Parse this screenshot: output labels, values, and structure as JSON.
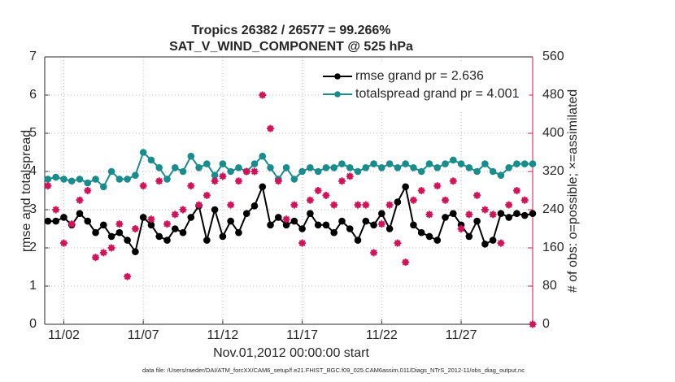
{
  "chart_data": {
    "type": "line",
    "title": "Tropics 26382 / 26577 = 99.266%",
    "subtitle": "SAT_V_WIND_COMPONENT @ 525 hPa",
    "x_label": "Nov.01,2012 00:00:00 start",
    "y_label": "rmse and totalspread",
    "y2_label": "# of obs: o=possible; ×=assimilated",
    "footnote": "data file: /Users/raeder/DAI/ATM_forcXX/CAM6_setup/f.e21.FHIST_BGC.f09_025.CAM6assim.011/Diags_NTrS_2012-11/obs_diag_output.nc",
    "x": [
      0,
      0.5,
      1,
      1.5,
      2,
      2.5,
      3,
      3.5,
      4,
      4.5,
      5,
      5.5,
      6,
      6.5,
      7,
      7.5,
      8,
      8.5,
      9,
      9.5,
      10,
      10.5,
      11,
      11.5,
      12,
      12.5,
      13,
      13.5,
      14,
      14.5,
      15,
      15.5,
      16,
      16.5,
      17,
      17.5,
      18,
      18.5,
      19,
      19.5,
      20,
      20.5,
      21,
      21.5,
      22,
      22.5,
      23,
      23.5,
      24,
      24.5,
      25,
      25.5,
      26,
      26.5,
      27,
      27.5,
      28,
      28.5,
      29,
      29.5,
      30,
      30.5
    ],
    "xlim": [
      -0.2,
      30.5
    ],
    "xticks": [
      {
        "value": 1,
        "label": "11/02"
      },
      {
        "value": 6,
        "label": "11/07"
      },
      {
        "value": 11,
        "label": "11/12"
      },
      {
        "value": 16,
        "label": "11/17"
      },
      {
        "value": 21,
        "label": "11/22"
      },
      {
        "value": 26,
        "label": "11/27"
      }
    ],
    "ylim": [
      0,
      7
    ],
    "yticks": [
      0,
      1,
      2,
      3,
      4,
      5,
      6,
      7
    ],
    "y2lim": [
      0,
      560
    ],
    "y2ticks": [
      0,
      80,
      160,
      240,
      320,
      400,
      480,
      560
    ],
    "grid": true,
    "legend": "upper right",
    "legend_text_color": "#1f5fe0",
    "y2_color": "#d0145a",
    "series": [
      {
        "name": "rmse grand pr = 2.636",
        "color": "#000000",
        "marker": "o",
        "values": [
          2.7,
          2.7,
          2.8,
          2.6,
          2.9,
          2.7,
          2.4,
          2.6,
          2.3,
          2.4,
          2.2,
          1.9,
          2.8,
          2.6,
          2.3,
          2.2,
          2.5,
          2.4,
          2.8,
          3.1,
          2.2,
          3.0,
          2.3,
          2.7,
          2.4,
          2.9,
          3.1,
          3.6,
          2.6,
          2.8,
          2.6,
          2.7,
          2.5,
          2.9,
          2.6,
          2.6,
          2.4,
          2.7,
          2.5,
          2.2,
          2.7,
          2.6,
          2.9,
          2.5,
          3.2,
          3.6,
          2.6,
          2.4,
          2.3,
          2.2,
          2.8,
          2.9,
          2.6,
          2.3,
          2.7,
          2.1,
          2.2,
          2.9,
          2.8,
          2.9,
          2.85,
          2.9
        ]
      },
      {
        "name": "totalspread grand pr = 4.001",
        "color": "#1a8c8c",
        "marker": "o",
        "values": [
          3.8,
          3.85,
          3.8,
          3.75,
          3.8,
          3.7,
          3.8,
          3.6,
          4.0,
          3.8,
          3.8,
          3.9,
          4.5,
          4.3,
          4.1,
          3.8,
          4.1,
          4.0,
          4.4,
          4.1,
          4.2,
          3.9,
          4.2,
          4.0,
          4.1,
          4.0,
          4.2,
          4.4,
          4.1,
          3.8,
          4.1,
          3.8,
          4.0,
          4.1,
          4.0,
          4.1,
          4.1,
          4.2,
          4.1,
          4.0,
          4.1,
          4.2,
          4.1,
          4.2,
          4.1,
          4.2,
          4.1,
          4.0,
          4.2,
          4.1,
          4.2,
          4.3,
          4.2,
          4.1,
          4.0,
          4.2,
          4.0,
          3.9,
          4.1,
          4.2,
          4.2,
          4.2
        ]
      },
      {
        "axis": "y2",
        "color": "#d0145a",
        "marker": "o",
        "line": false,
        "values": [
          290,
          240,
          170,
          210,
          260,
          280,
          140,
          150,
          160,
          210,
          100,
          200,
          290,
          220,
          300,
          210,
          230,
          240,
          290,
          250,
          270,
          300,
          310,
          250,
          300,
          320,
          320,
          480,
          410,
          300,
          220,
          250,
          170,
          260,
          280,
          270,
          250,
          300,
          310,
          250,
          250,
          150,
          210,
          250,
          170,
          130,
          260,
          280,
          230,
          290,
          260,
          300,
          200,
          230,
          270,
          240,
          230,
          170,
          250,
          280,
          260,
          0
        ]
      },
      {
        "axis": "y2",
        "color": "#d0145a",
        "marker": "*",
        "line": false,
        "values": [
          290,
          240,
          170,
          210,
          260,
          280,
          140,
          150,
          160,
          210,
          100,
          200,
          290,
          220,
          300,
          210,
          230,
          240,
          290,
          250,
          270,
          300,
          310,
          250,
          300,
          320,
          320,
          480,
          410,
          300,
          220,
          250,
          170,
          260,
          280,
          270,
          250,
          300,
          310,
          250,
          250,
          150,
          210,
          250,
          170,
          130,
          260,
          280,
          230,
          290,
          260,
          300,
          200,
          230,
          270,
          240,
          230,
          170,
          250,
          280,
          260,
          0
        ]
      }
    ]
  }
}
